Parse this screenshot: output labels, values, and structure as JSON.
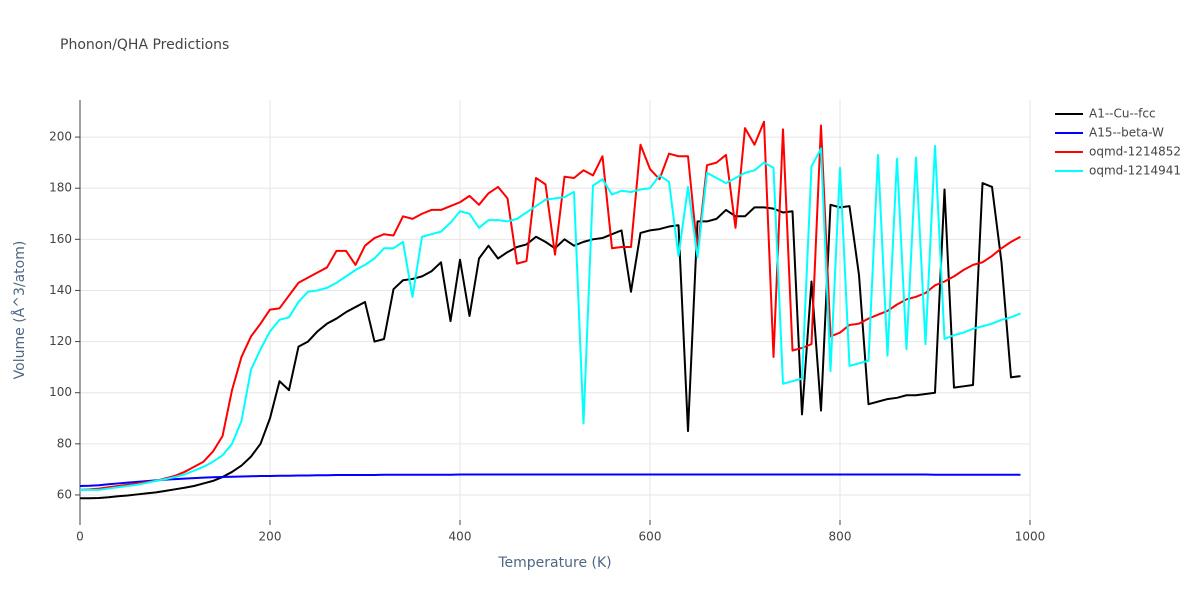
{
  "chart_data": {
    "type": "line",
    "title": "Phonon/QHA Predictions",
    "x_label": "Temperature (K)",
    "y_label": "Volume (Å^3/atom)",
    "x": [
      0,
      10,
      20,
      30,
      40,
      50,
      60,
      70,
      80,
      90,
      100,
      110,
      120,
      130,
      140,
      150,
      160,
      170,
      180,
      190,
      200,
      210,
      220,
      230,
      240,
      250,
      260,
      270,
      280,
      290,
      300,
      310,
      320,
      330,
      340,
      350,
      360,
      370,
      380,
      390,
      400,
      410,
      420,
      430,
      440,
      450,
      460,
      470,
      480,
      490,
      500,
      510,
      520,
      530,
      540,
      550,
      560,
      570,
      580,
      590,
      600,
      610,
      620,
      630,
      640,
      650,
      660,
      670,
      680,
      690,
      700,
      710,
      720,
      730,
      740,
      750,
      760,
      770,
      780,
      790,
      800,
      810,
      820,
      830,
      840,
      850,
      860,
      870,
      880,
      890,
      900,
      910,
      920,
      930,
      940,
      950,
      960,
      970,
      980,
      990
    ],
    "series": [
      {
        "name": "A1--Cu--fcc",
        "color": "#000000",
        "values": [
          58.7,
          58.7,
          58.8,
          59.1,
          59.5,
          59.8,
          60.2,
          60.6,
          61,
          61.6,
          62.2,
          62.8,
          63.5,
          64.5,
          65.5,
          67,
          69,
          71.5,
          75,
          80,
          90,
          104.5,
          101,
          118,
          120,
          124,
          127,
          129,
          131.5,
          133.5,
          135.5,
          120,
          121,
          140.5,
          144,
          144.5,
          145.5,
          147.5,
          151,
          128,
          152,
          130,
          152.5,
          157.5,
          152.5,
          155,
          157,
          158,
          161,
          159,
          156.5,
          160,
          157.5,
          159,
          160,
          160.5,
          162,
          163.5,
          139.5,
          162.5,
          163.5,
          164,
          165,
          165.5,
          85,
          167,
          167,
          168,
          171.5,
          169,
          169,
          172.5,
          172.5,
          172,
          170.5,
          171,
          91.5,
          143.5,
          93,
          173.5,
          172.5,
          173,
          146,
          95.5,
          96.5,
          97.5,
          98,
          99,
          99,
          99.5,
          100,
          179.5,
          102,
          102.5,
          103,
          182,
          180.5,
          151,
          106,
          106.5
        ]
      },
      {
        "name": "A15--beta-W",
        "color": "#0000ff",
        "values": [
          63.5,
          63.6,
          63.8,
          64.2,
          64.5,
          64.8,
          65.1,
          65.4,
          65.7,
          66,
          66.2,
          66.4,
          66.6,
          66.8,
          66.9,
          67,
          67.1,
          67.2,
          67.3,
          67.4,
          67.4,
          67.5,
          67.5,
          67.6,
          67.6,
          67.7,
          67.7,
          67.8,
          67.8,
          67.8,
          67.8,
          67.8,
          67.9,
          67.9,
          67.9,
          67.9,
          67.9,
          67.9,
          67.9,
          67.9,
          68,
          68,
          68,
          68,
          68,
          68,
          68,
          68,
          68,
          68,
          68,
          68,
          68,
          68,
          68,
          68,
          68,
          68,
          68,
          68,
          68,
          68,
          68,
          68,
          68,
          68,
          68,
          68,
          68,
          68,
          68,
          68,
          68,
          68,
          68,
          68,
          68,
          68,
          68,
          68,
          68,
          68,
          68,
          68,
          68,
          68,
          68,
          68,
          68,
          68,
          67.9,
          67.9,
          67.9,
          67.9,
          67.9,
          67.9,
          67.9,
          67.9,
          67.9,
          67.9
        ]
      },
      {
        "name": "oqmd-1214852",
        "color": "#ff0000",
        "values": [
          62,
          62.2,
          62.5,
          63,
          63.5,
          64,
          64.5,
          65,
          65.5,
          66.5,
          67.5,
          69,
          71,
          73,
          77,
          83,
          101,
          114,
          122,
          127,
          132.5,
          133,
          138,
          143,
          145,
          147,
          149,
          155.5,
          155.5,
          150,
          157.5,
          160.5,
          162,
          161.5,
          169,
          168,
          170,
          171.5,
          171.5,
          173,
          174.5,
          177,
          173.5,
          178,
          180.5,
          176,
          150.5,
          151.5,
          184,
          181.5,
          154,
          184.5,
          184,
          187,
          185,
          192.5,
          156.5,
          157,
          157,
          197,
          187.5,
          183.5,
          193.5,
          192.5,
          192.5,
          155,
          189,
          190,
          193,
          164.5,
          203.5,
          197,
          206,
          114,
          203,
          116.5,
          117.5,
          119,
          204.5,
          122,
          123.5,
          126.5,
          127,
          129,
          130.5,
          132,
          134.5,
          136.5,
          137.5,
          139,
          142,
          143.5,
          145.5,
          148,
          150,
          151,
          153.5,
          156.5,
          159,
          161
        ]
      },
      {
        "name": "oqmd-1214941",
        "color": "#00ffff",
        "values": [
          62,
          62,
          62,
          62.5,
          63,
          63.5,
          64,
          64.7,
          65.5,
          66.2,
          67,
          68,
          69.5,
          71,
          73,
          75.5,
          80,
          89,
          109,
          117,
          124,
          128.5,
          129.5,
          135.5,
          139.5,
          140,
          141,
          143,
          145.5,
          148,
          150,
          152.5,
          156.5,
          156.5,
          159,
          137.5,
          161,
          162,
          163,
          166.5,
          171,
          170,
          164.5,
          167.5,
          167.5,
          167,
          168,
          170.5,
          173,
          175.5,
          176,
          176.5,
          178.5,
          88,
          181,
          183.5,
          177.5,
          179,
          178.5,
          179.5,
          180,
          185,
          182.5,
          153.5,
          180.5,
          153,
          186,
          184,
          182,
          184,
          186,
          187,
          190,
          188,
          103.5,
          104.5,
          105.5,
          188.5,
          195.5,
          108.5,
          188,
          110.5,
          111.5,
          112.5,
          193,
          114.5,
          191.5,
          117,
          192,
          119,
          196.5,
          121,
          122.5,
          123.5,
          125,
          126,
          127,
          128.5,
          129.5,
          131
        ]
      }
    ],
    "xlim": [
      0,
      1000
    ],
    "ylim": [
      50.2,
      214.5
    ],
    "xticks": [
      0,
      200,
      400,
      600,
      800,
      1000
    ],
    "yticks": [
      60,
      80,
      100,
      120,
      140,
      160,
      180,
      200
    ],
    "grid": true,
    "legend": "right"
  }
}
